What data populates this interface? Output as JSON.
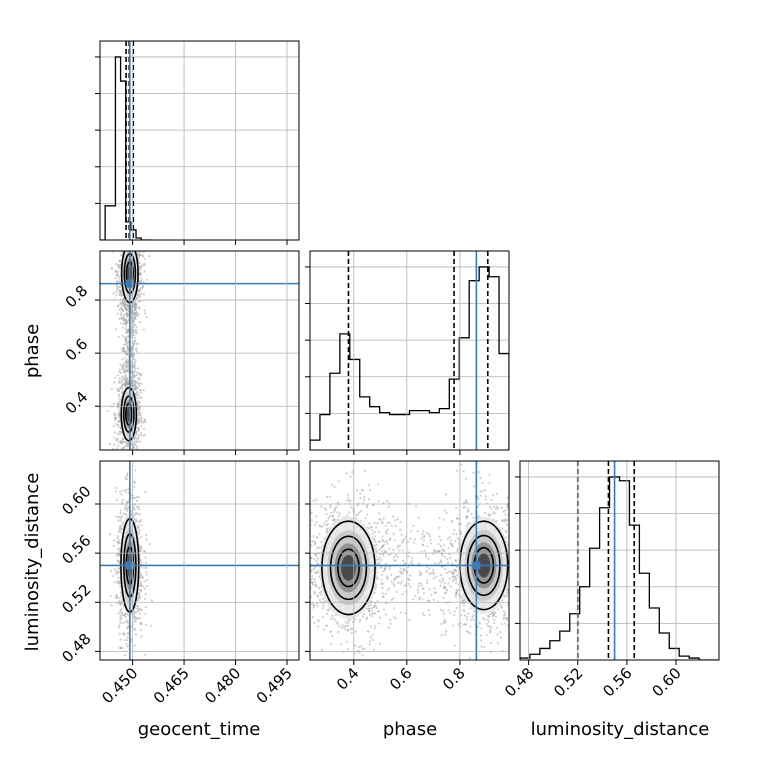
{
  "chart_data": {
    "type": "corner",
    "parameters": [
      "geocent_time",
      "phase",
      "luminosity_distance"
    ],
    "axis_labels": {
      "geocent_time": "geocent_time",
      "phase": "phase",
      "luminosity_distance": "luminosity_distance"
    },
    "ranges": {
      "geocent_time": [
        0.4405,
        0.4985
      ],
      "phase": [
        0.235,
        0.985
      ],
      "luminosity_distance": [
        0.473,
        0.635
      ]
    },
    "ticks": {
      "geocent_time": [
        0.45,
        0.465,
        0.48,
        0.495
      ],
      "phase": [
        0.4,
        0.6,
        0.8
      ],
      "luminosity_distance": [
        0.48,
        0.52,
        0.56,
        0.6
      ]
    },
    "tick_labels": {
      "geocent_time": [
        "0.450",
        "0.465",
        "0.480",
        "0.495"
      ],
      "phase": [
        "0.4",
        "0.6",
        "0.8"
      ],
      "luminosity_distance": [
        "0.48",
        "0.52",
        "0.56",
        "0.60"
      ]
    },
    "truths": {
      "geocent_time": 0.4492,
      "phase": 0.862,
      "luminosity_distance": 0.55
    },
    "quantiles": {
      "geocent_time": [
        0.4481,
        0.449,
        0.4502
      ],
      "phase": [
        0.38,
        0.778,
        0.905
      ],
      "luminosity_distance": [
        0.52,
        0.545,
        0.566
      ]
    },
    "histograms": {
      "geocent_time": {
        "edges": [
          0.4405,
          0.442,
          0.4435,
          0.445,
          0.4465,
          0.448,
          0.4495,
          0.451,
          0.4525,
          0.454,
          0.4555
        ],
        "counts": [
          0,
          0.17,
          0.17,
          0.91,
          0.79,
          0.09,
          0.05,
          0.01,
          0,
          0
        ]
      },
      "phase": {
        "edges": [
          0.235,
          0.2725,
          0.31,
          0.3475,
          0.385,
          0.4225,
          0.46,
          0.4975,
          0.535,
          0.5725,
          0.61,
          0.6475,
          0.685,
          0.7225,
          0.76,
          0.7975,
          0.835,
          0.8725,
          0.91,
          0.9475,
          0.985
        ],
        "counts": [
          0.05,
          0.18,
          0.39,
          0.59,
          0.46,
          0.27,
          0.22,
          0.19,
          0.18,
          0.18,
          0.2,
          0.2,
          0.19,
          0.21,
          0.36,
          0.57,
          0.86,
          0.93,
          0.88,
          0.49
        ]
      },
      "luminosity_distance": {
        "edges": [
          0.473,
          0.4811,
          0.4892,
          0.4973,
          0.5054,
          0.5135,
          0.5216,
          0.5297,
          0.5378,
          0.5459,
          0.554,
          0.5621,
          0.5702,
          0.5783,
          0.5864,
          0.5945,
          0.6026,
          0.6107,
          0.6188,
          0.6269,
          0.635
        ],
        "counts": [
          0.01,
          0.03,
          0.06,
          0.1,
          0.15,
          0.24,
          0.38,
          0.58,
          0.79,
          0.95,
          0.93,
          0.7,
          0.45,
          0.27,
          0.14,
          0.06,
          0.02,
          0.01,
          0,
          0
        ]
      }
    },
    "contours_2d": {
      "geocent_time_vs_phase": {
        "modes": [
          {
            "center": [
              0.4492,
              0.9
            ],
            "sigma": [
              0.0012,
              0.055
            ]
          },
          {
            "center": [
              0.4489,
              0.37
            ],
            "sigma": [
              0.0011,
              0.05
            ]
          }
        ]
      },
      "geocent_time_vs_luminosity_distance": {
        "modes": [
          {
            "center": [
              0.4492,
              0.55
            ],
            "sigma": [
              0.0013,
              0.019
            ]
          }
        ]
      },
      "phase_vs_luminosity_distance": {
        "modes": [
          {
            "center": [
              0.38,
              0.548
            ],
            "sigma": [
              0.05,
              0.019
            ]
          },
          {
            "center": [
              0.89,
              0.55
            ],
            "sigma": [
              0.045,
              0.018
            ]
          }
        ],
        "bridge_y": 0.546
      }
    },
    "grid": true,
    "truth_color": "#3d7ab5",
    "hist_color": "#000000",
    "sample_color": "#a8a8a8"
  }
}
